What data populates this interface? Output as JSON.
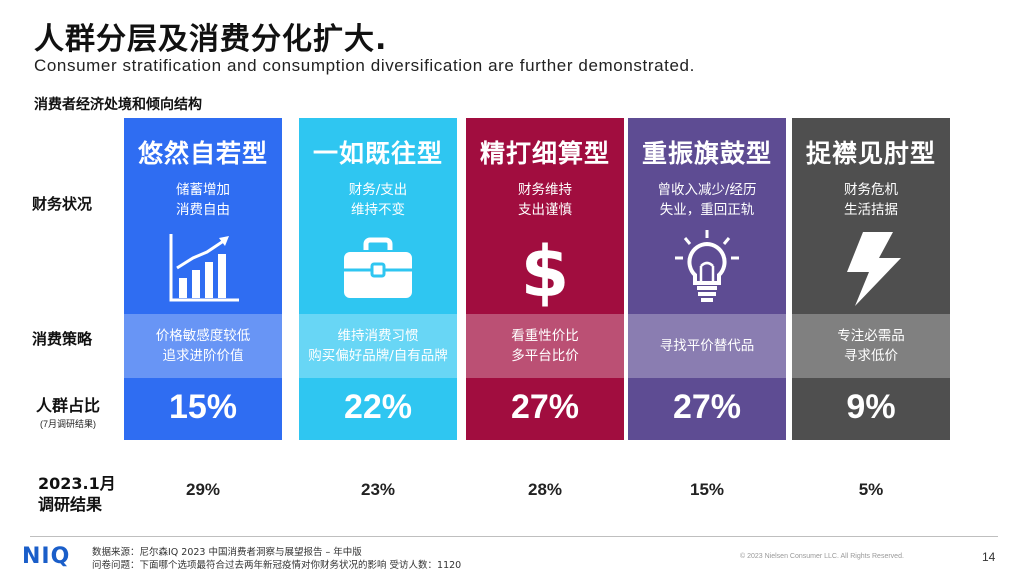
{
  "header": {
    "title": "人群分层及消费分化扩大.",
    "subtitle": "Consumer stratification and consumption diversification are further demonstrated.",
    "section_title": "消费者经济处境和倾向结构"
  },
  "row_labels": {
    "financial": "财务状况",
    "strategy": "消费策略",
    "share": "人群占比",
    "share_note": "(7月调研结果)",
    "jan_line1": "2023.1月",
    "jan_line2": "调研结果"
  },
  "cards": [
    {
      "name": "悠然自若型",
      "fin1": "储蓄增加",
      "fin2": "消费自由",
      "icon": "bar-chart-growth-icon",
      "str1": "价格敏感度较低",
      "str2": "追求进阶价值",
      "pct": "15%",
      "jan": "29%",
      "color": "#2f6df2"
    },
    {
      "name": "一如既往型",
      "fin1": "财务/支出",
      "fin2": "维持不变",
      "icon": "briefcase-icon",
      "str1": "维持消费习惯",
      "str2": "购买偏好品牌/自有品牌",
      "pct": "22%",
      "jan": "23%",
      "color": "#2fc6f1"
    },
    {
      "name": "精打细算型",
      "fin1": "财务维持",
      "fin2": "支出谨慎",
      "icon": "dollar-sign-icon",
      "str1": "看重性价比",
      "str2": "多平台比价",
      "pct": "27%",
      "jan": "28%",
      "color": "#a10d3f"
    },
    {
      "name": "重振旗鼓型",
      "fin1": "曾收入减少/经历",
      "fin2": "失业，重回正轨",
      "icon": "lightbulb-icon",
      "str1": "寻找平价替代品",
      "str2": "",
      "pct": "27%",
      "jan": "15%",
      "color": "#5e4c93"
    },
    {
      "name": "捉襟见肘型",
      "fin1": "财务危机",
      "fin2": "生活拮据",
      "icon": "lightning-icon",
      "str1": "专注必需品",
      "str2": "寻求低价",
      "pct": "9%",
      "jan": "5%",
      "color": "#4f4f4f"
    }
  ],
  "footer": {
    "logo": "NIQ",
    "source_line1": "数据来源：尼尔森IQ 2023 中国消费者洞察与展望报告 – 年中版",
    "source_line2": "问卷问题：下面哪个选项最符合过去两年新冠疫情对你财务状况的影响   受访人数：1120",
    "copyright": "© 2023 Nielsen Consumer LLC. All Rights Reserved.",
    "page": "14"
  }
}
